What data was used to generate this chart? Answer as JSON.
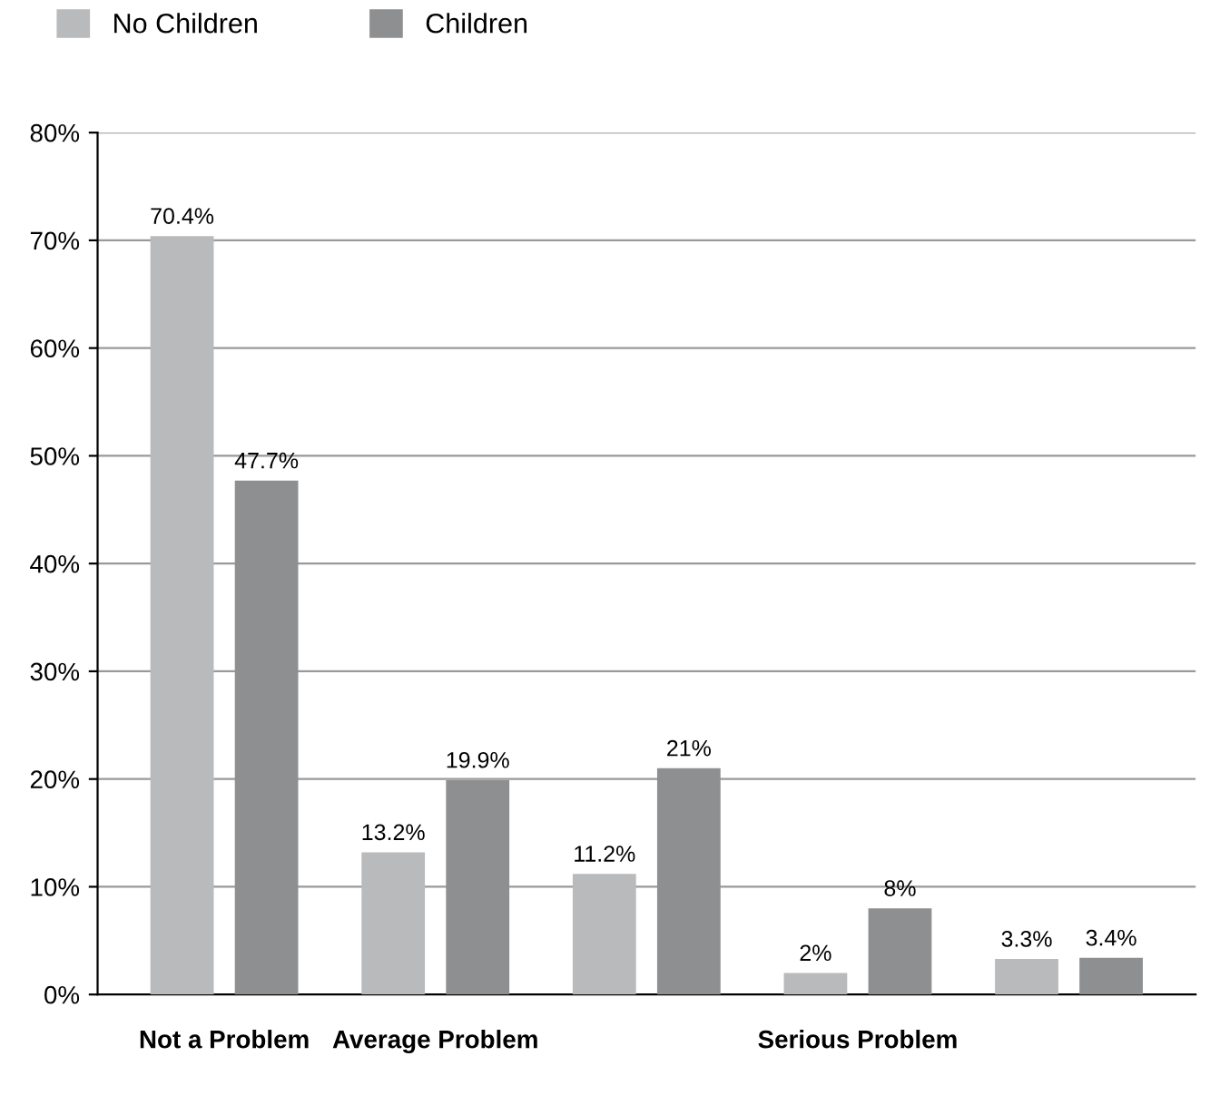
{
  "chart_data": {
    "type": "bar",
    "categories": [
      "Not a Problem",
      "Average Problem",
      null,
      "Serious Problem",
      null
    ],
    "series": [
      {
        "name": "No Children",
        "color": "#b9babc",
        "values": [
          70.4,
          13.2,
          11.2,
          2,
          3.3
        ],
        "value_labels": [
          "70.4%",
          "13.2%",
          "11.2%",
          "2%",
          "3.3%"
        ]
      },
      {
        "name": "Children",
        "color": "#8e8f91",
        "values": [
          47.7,
          19.9,
          21,
          8,
          3.4
        ],
        "value_labels": [
          "47.7%",
          "19.9%",
          "21%",
          "8%",
          "3.4%"
        ]
      }
    ],
    "ylim": [
      0,
      80
    ],
    "yticks": [
      {
        "value": 0,
        "label": "0%"
      },
      {
        "value": 10,
        "label": "10%"
      },
      {
        "value": 20,
        "label": "20%"
      },
      {
        "value": 30,
        "label": "30%"
      },
      {
        "value": 40,
        "label": "40%"
      },
      {
        "value": 50,
        "label": "50%"
      },
      {
        "value": 60,
        "label": "60%"
      },
      {
        "value": 70,
        "label": "70%"
      },
      {
        "value": 80,
        "label": "80%"
      }
    ],
    "grid": "y",
    "legend": "top left"
  }
}
